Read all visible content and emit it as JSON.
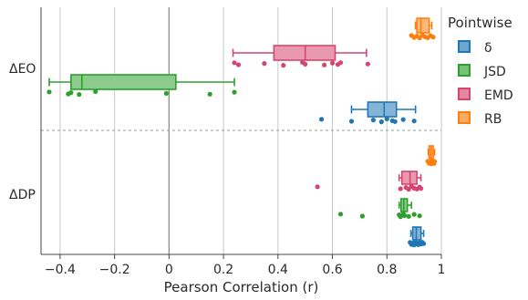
{
  "chart_data": {
    "type": "box",
    "orientation": "horizontal",
    "xlabel": "Pearson Correlation (r)",
    "xlim": [
      -0.47,
      1.0
    ],
    "x_ticks": [
      {
        "value": -0.4,
        "label": "−0.4"
      },
      {
        "value": -0.2,
        "label": "−0.2"
      },
      {
        "value": 0,
        "label": "0"
      },
      {
        "value": 0.2,
        "label": "0.2"
      },
      {
        "value": 0.4,
        "label": "0.4"
      },
      {
        "value": 0.6,
        "label": "0.6"
      },
      {
        "value": 0.8,
        "label": "0.8"
      },
      {
        "value": 1.0,
        "label": "1"
      }
    ],
    "grid": true,
    "groups": [
      "ΔEO",
      "ΔDP"
    ],
    "legend_title": "Pointwise",
    "legend_position": "right",
    "series": [
      {
        "name": "δ",
        "color": "#1f77b4",
        "boxes": [
          {
            "group": "ΔEO",
            "min": 0.67,
            "q1": 0.73,
            "median": 0.79,
            "q3": 0.835,
            "max": 0.905,
            "points": [
              0.56,
              0.67,
              0.75,
              0.78,
              0.8,
              0.82,
              0.83,
              0.86,
              0.9
            ]
          },
          {
            "group": "ΔDP",
            "min": 0.888,
            "q1": 0.895,
            "median": 0.908,
            "q3": 0.925,
            "max": 0.935,
            "points": [
              0.885,
              0.89,
              0.895,
              0.9,
              0.905,
              0.91,
              0.915,
              0.92,
              0.925,
              0.93,
              0.935
            ]
          }
        ]
      },
      {
        "name": "JSD",
        "color": "#2ca02c",
        "boxes": [
          {
            "group": "ΔEO",
            "min": -0.44,
            "q1": -0.36,
            "median": -0.32,
            "q3": 0.025,
            "max": 0.24,
            "points": [
              -0.44,
              -0.37,
              -0.36,
              -0.33,
              -0.27,
              -0.01,
              0.15,
              0.24
            ]
          },
          {
            "group": "ΔDP",
            "min": 0.845,
            "q1": 0.852,
            "median": 0.862,
            "q3": 0.875,
            "max": 0.89,
            "points": [
              0.63,
              0.71,
              0.845,
              0.85,
              0.86,
              0.865,
              0.88,
              0.9,
              0.92
            ]
          }
        ]
      },
      {
        "name": "EMD",
        "color": "#d6456f",
        "boxes": [
          {
            "group": "ΔEO",
            "min": 0.235,
            "q1": 0.385,
            "median": 0.5,
            "q3": 0.61,
            "max": 0.725,
            "points": [
              0.24,
              0.255,
              0.35,
              0.42,
              0.49,
              0.5,
              0.57,
              0.6,
              0.62,
              0.63,
              0.73
            ]
          },
          {
            "group": "ΔDP",
            "min": 0.845,
            "q1": 0.855,
            "median": 0.885,
            "q3": 0.91,
            "max": 0.925,
            "points": [
              0.545,
              0.85,
              0.87,
              0.88,
              0.89,
              0.9,
              0.91,
              0.92,
              0.925
            ]
          }
        ]
      },
      {
        "name": "RB",
        "color": "#ff7f0e",
        "boxes": [
          {
            "group": "ΔEO",
            "min": 0.905,
            "q1": 0.91,
            "median": 0.925,
            "q3": 0.955,
            "max": 0.965,
            "points": [
              0.89,
              0.9,
              0.91,
              0.92,
              0.93,
              0.94,
              0.95,
              0.96,
              0.97
            ]
          },
          {
            "group": "ΔDP",
            "min": 0.952,
            "q1": 0.955,
            "median": 0.962,
            "q3": 0.97,
            "max": 0.975,
            "points": [
              0.95,
              0.955,
              0.96,
              0.963,
              0.966,
              0.97,
              0.973,
              0.975
            ]
          }
        ]
      }
    ]
  }
}
